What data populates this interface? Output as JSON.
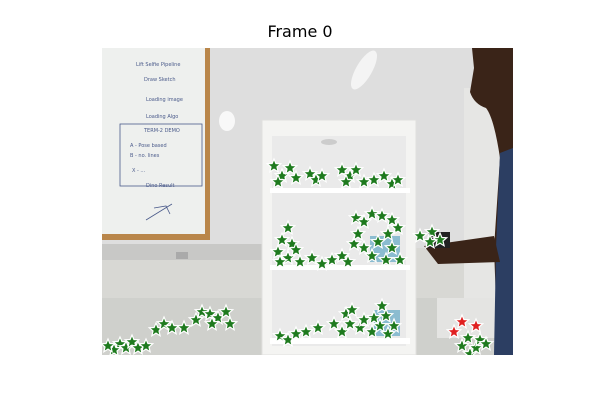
{
  "title": "Frame 0",
  "image": {
    "description_icon": "camera-frame-photo",
    "colors": {
      "wall": "#dcdcd8",
      "whiteboard": "#eef0ee",
      "whiteboard_frame": "#b9864a",
      "shelf": "#f2f2f0",
      "person_skin": "#3a2418",
      "shirt": "#2c3e62",
      "marker_inlier": "#1e7a1e",
      "marker_outlier": "#e02020",
      "marker_edge": "#ffffff"
    }
  },
  "whiteboard_text": {
    "line1": "Lift Selfie Pipeline",
    "line2": "Draw Sketch",
    "line3": "Loading image",
    "line4": "Loading Algo",
    "box": "TERM-2 DEMO",
    "item1": "A - Pose based",
    "item2": "B - no. lines",
    "item3": "X - ...",
    "item4": "Dino Result"
  }
}
